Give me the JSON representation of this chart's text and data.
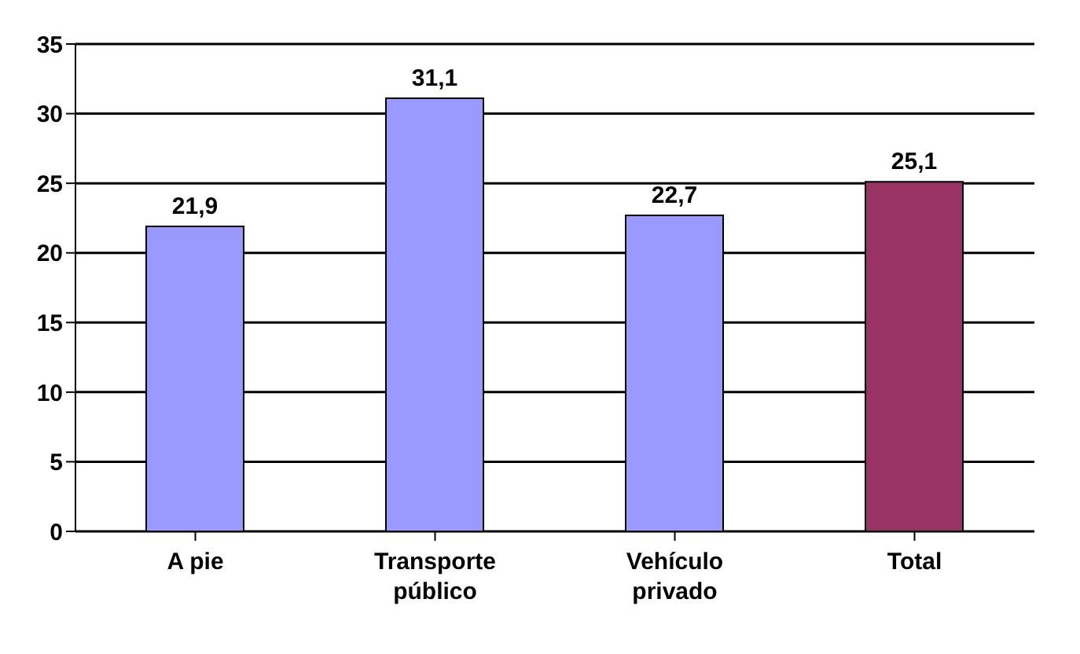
{
  "chart_data": {
    "type": "bar",
    "categories": [
      "A pie",
      "Transporte público",
      "Vehículo privado",
      "Total"
    ],
    "values": [
      21.9,
      31.1,
      22.7,
      25.1
    ],
    "colors": [
      "#9999ff",
      "#9999ff",
      "#9999ff",
      "#993366"
    ],
    "value_labels": [
      "21,9",
      "31,1",
      "22,7",
      "25,1"
    ],
    "ylim": [
      0,
      35
    ],
    "yticks": [
      0,
      5,
      10,
      15,
      20,
      25,
      30,
      35
    ],
    "grid": "y"
  }
}
